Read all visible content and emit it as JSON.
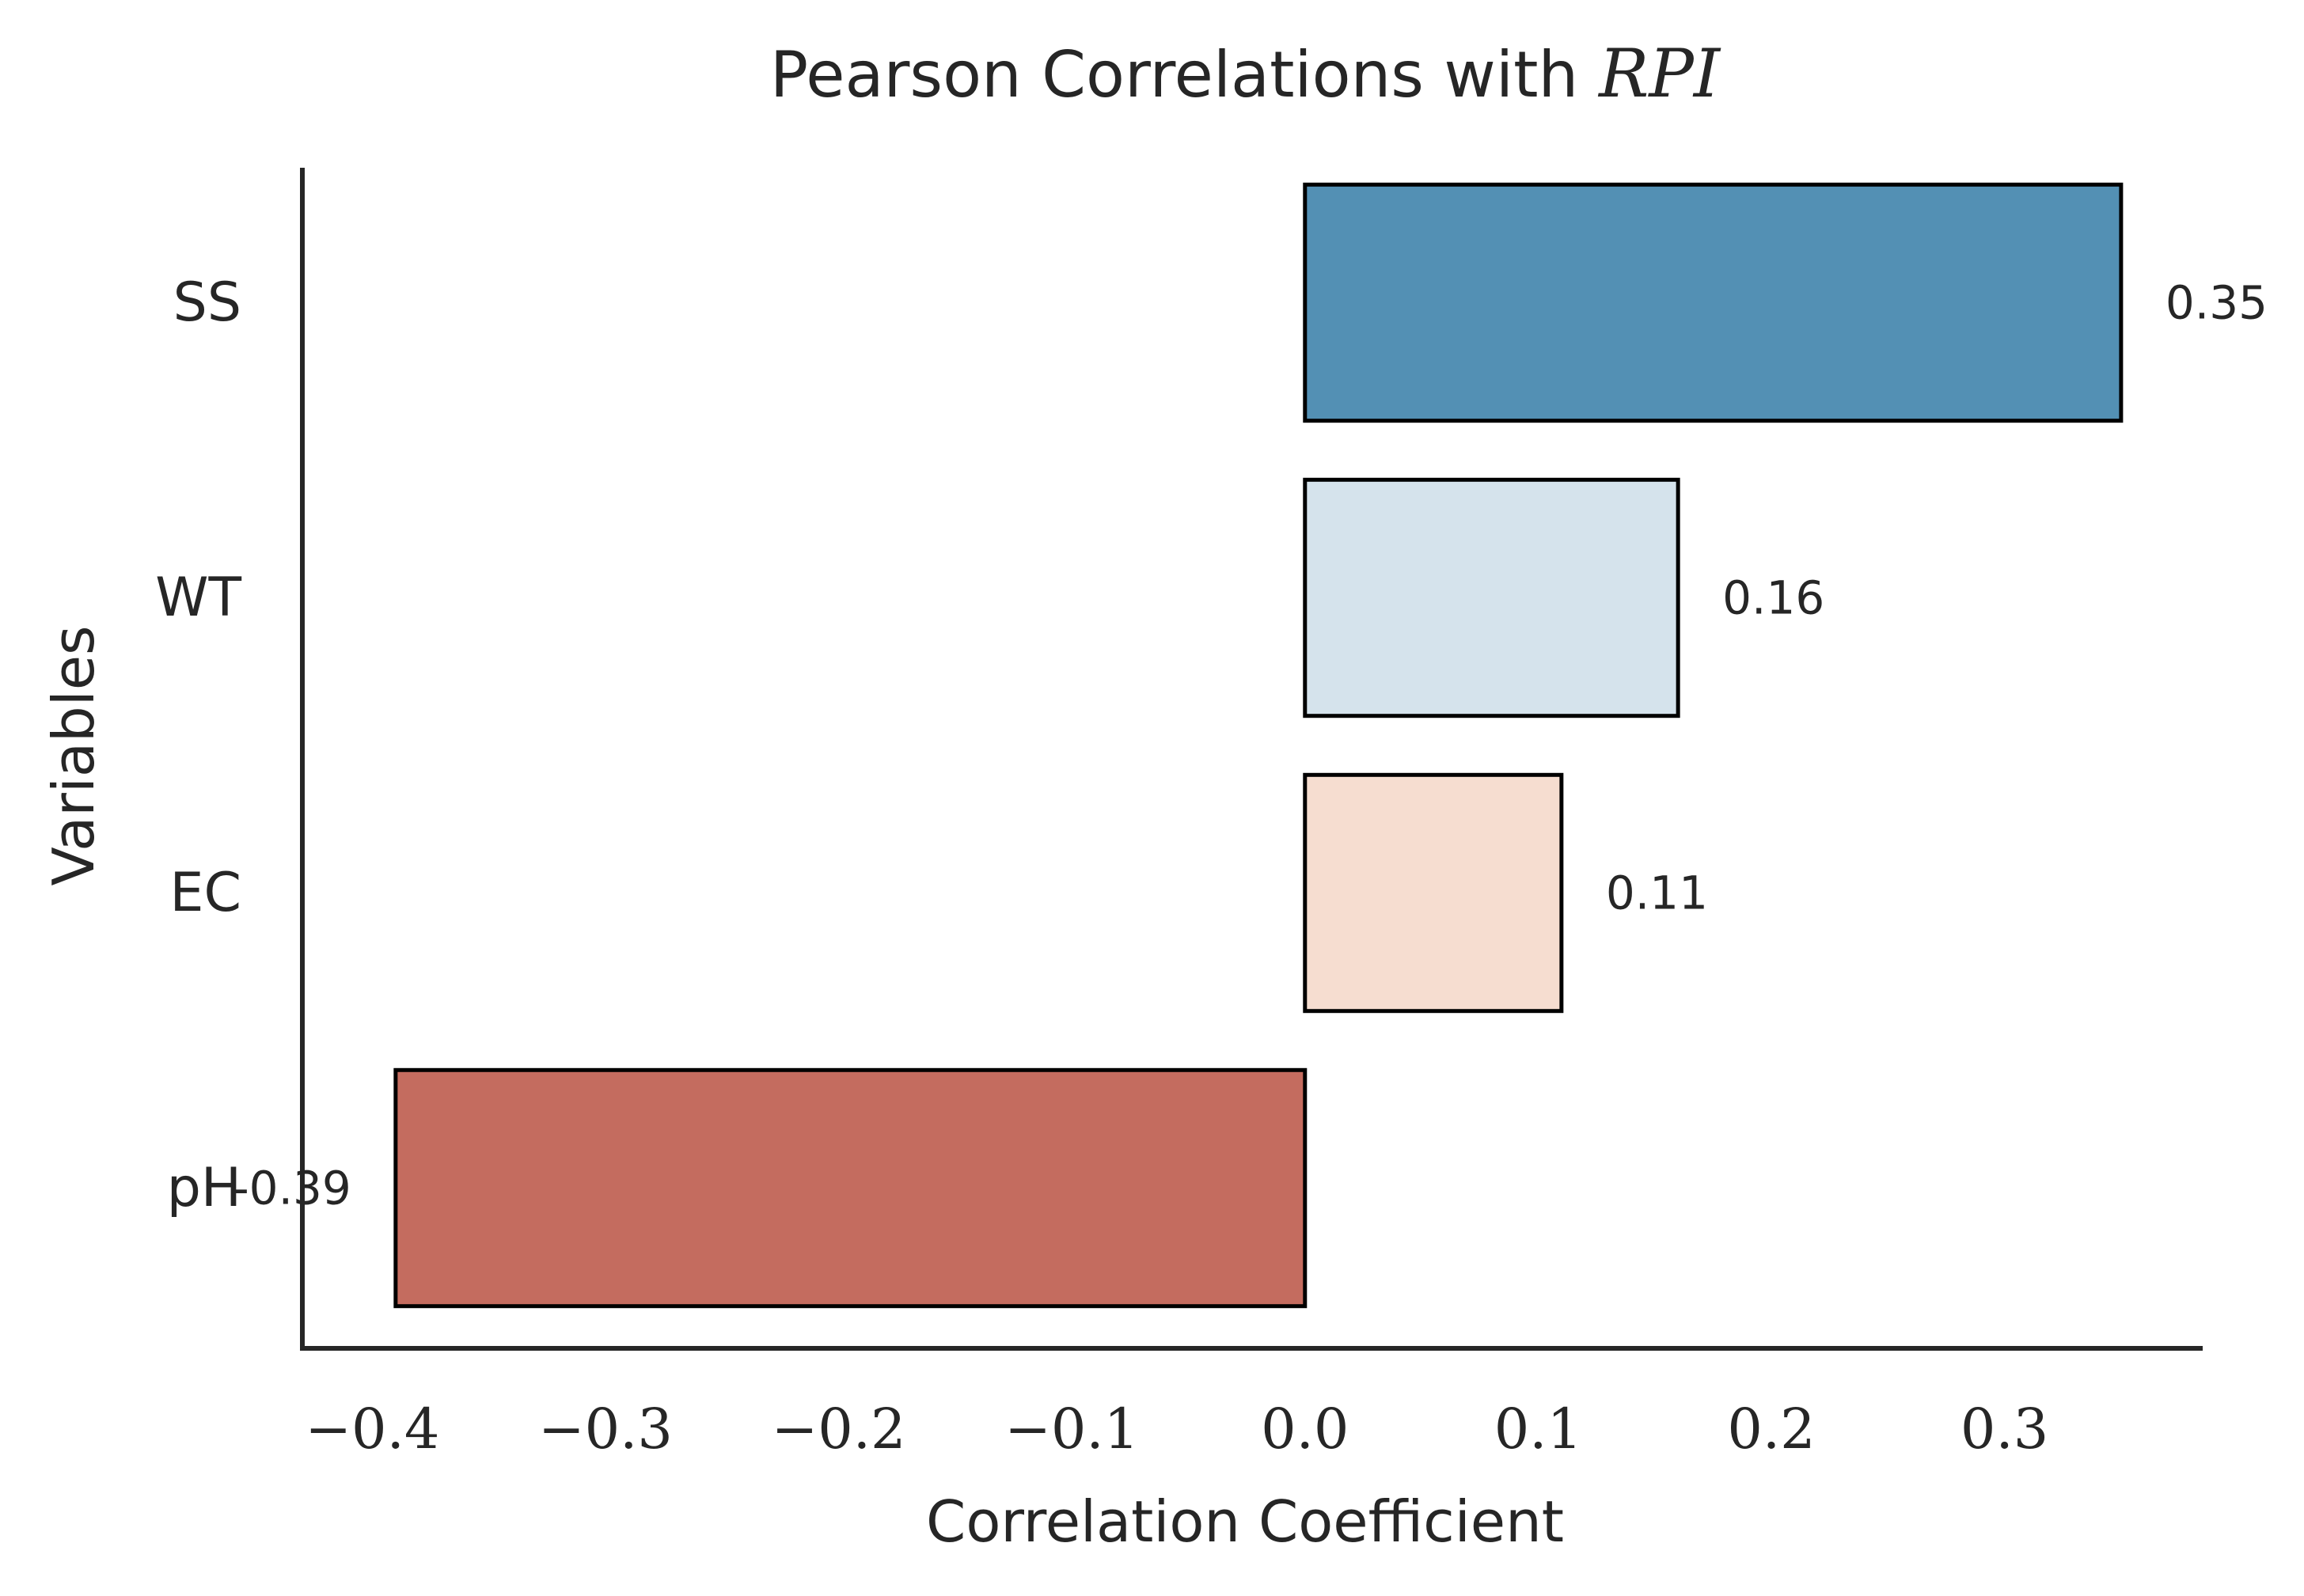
{
  "chart_data": {
    "type": "bar",
    "orientation": "horizontal",
    "title": "Pearson Correlations with",
    "title_math": "RPI",
    "xlabel": "Correlation Coefficient",
    "ylabel": "Variables",
    "categories": [
      "SS",
      "WT",
      "EC",
      "pH"
    ],
    "values": [
      0.35,
      0.16,
      0.11,
      -0.39
    ],
    "value_labels": [
      "0.35",
      "0.16",
      "0.11",
      "-0.39"
    ],
    "bar_colors": [
      "#5390b4",
      "#d5e3ec",
      "#f6ddd0",
      "#c46c5f"
    ],
    "bar_edge_color": "#000000",
    "xlim": [
      -0.43,
      0.385
    ],
    "xticks": [
      -0.4,
      -0.3,
      -0.2,
      -0.1,
      0.0,
      0.1,
      0.2,
      0.3
    ],
    "xtick_labels": [
      "−0.4",
      "−0.3",
      "−0.2",
      "−0.1",
      "0.0",
      "0.1",
      "0.2",
      "0.3"
    ],
    "grid": false,
    "legend": "none",
    "axis_color": "#262626"
  }
}
